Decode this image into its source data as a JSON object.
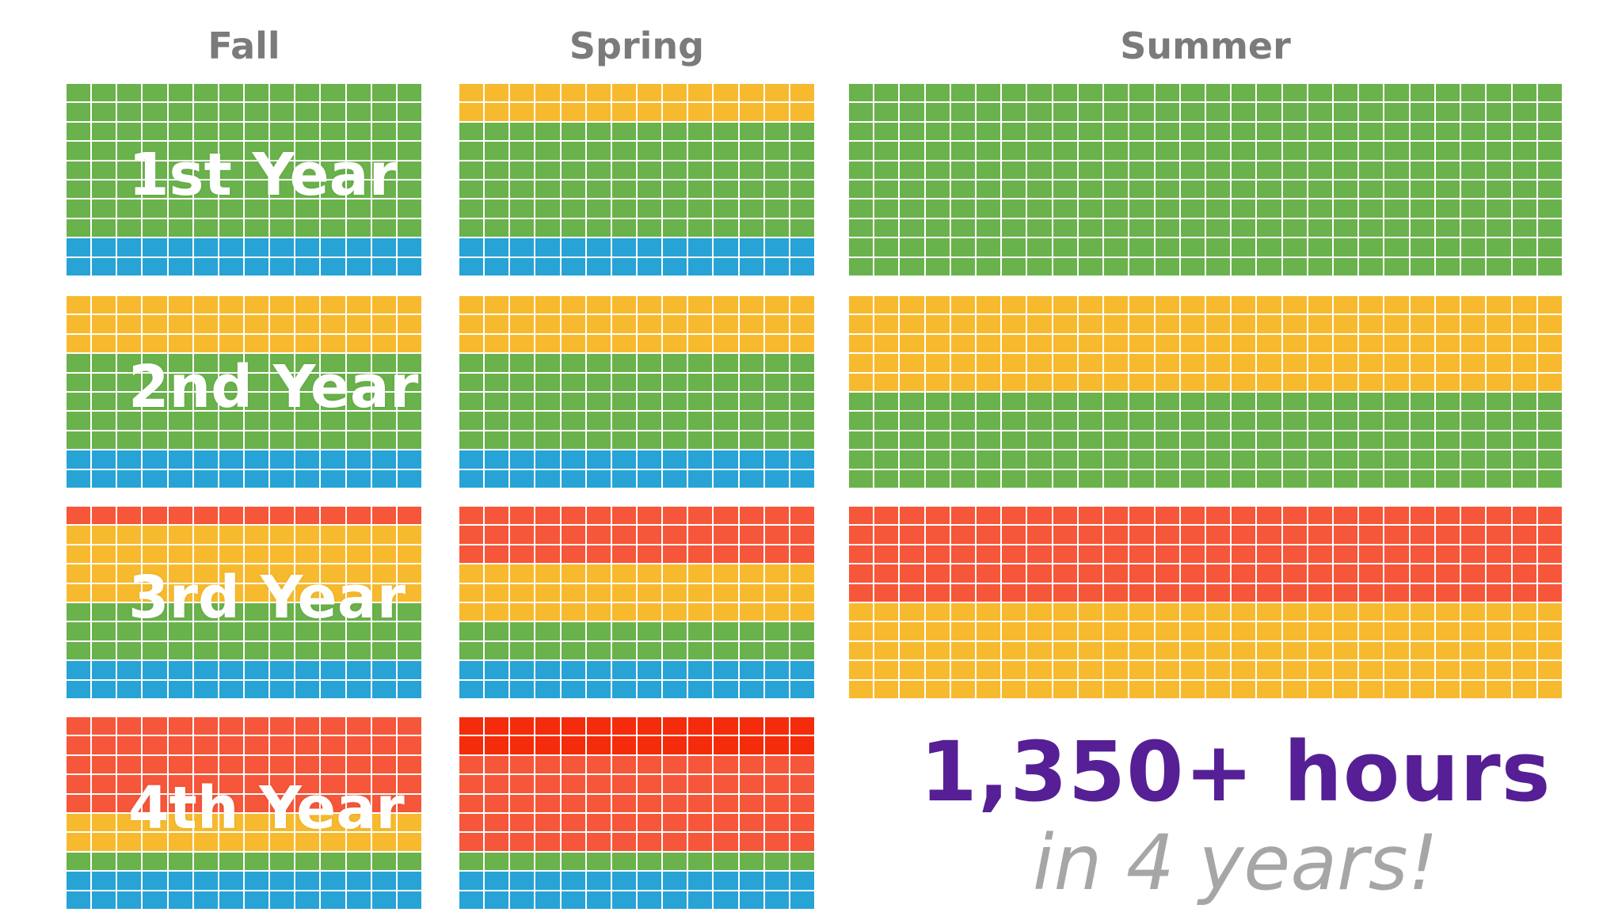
{
  "colors": {
    "green": "#6ab24c",
    "blue": "#27a3d6",
    "yellow": "#f7ba2e",
    "orange": "#f6563a",
    "red": "#f42c0b"
  },
  "headers": {
    "fall": "Fall",
    "spring": "Spring",
    "summer": "Summer"
  },
  "years": [
    {
      "label": "1st Year",
      "fall": [
        "green",
        "green",
        "green",
        "green",
        "green",
        "green",
        "green",
        "green",
        "blue",
        "blue"
      ],
      "spring": [
        "yellow",
        "yellow",
        "green",
        "green",
        "green",
        "green",
        "green",
        "green",
        "blue",
        "blue"
      ],
      "summer": [
        "green",
        "green",
        "green",
        "green",
        "green",
        "green",
        "green",
        "green",
        "green",
        "green"
      ]
    },
    {
      "label": "2nd Year",
      "fall": [
        "yellow",
        "yellow",
        "yellow",
        "green",
        "green",
        "green",
        "green",
        "green",
        "blue",
        "blue"
      ],
      "spring": [
        "yellow",
        "yellow",
        "yellow",
        "green",
        "green",
        "green",
        "green",
        "green",
        "blue",
        "blue"
      ],
      "summer": [
        "yellow",
        "yellow",
        "yellow",
        "yellow",
        "yellow",
        "green",
        "green",
        "green",
        "green",
        "green"
      ]
    },
    {
      "label": "3rd Year",
      "fall": [
        "orange",
        "yellow",
        "yellow",
        "yellow",
        "yellow",
        "green",
        "green",
        "green",
        "blue",
        "blue"
      ],
      "spring": [
        "orange",
        "orange",
        "orange",
        "yellow",
        "yellow",
        "yellow",
        "green",
        "green",
        "blue",
        "blue"
      ],
      "summer": [
        "orange",
        "orange",
        "orange",
        "orange",
        "orange",
        "yellow",
        "yellow",
        "yellow",
        "yellow",
        "yellow"
      ]
    },
    {
      "label": "4th Year",
      "fall": [
        "orange",
        "orange",
        "orange",
        "orange",
        "orange",
        "yellow",
        "yellow",
        "green",
        "blue",
        "blue"
      ],
      "spring": [
        "red",
        "red",
        "orange",
        "orange",
        "orange",
        "orange",
        "orange",
        "green",
        "blue",
        "blue"
      ],
      "summer": null
    }
  ],
  "summary": {
    "hours": "1,350+ hours",
    "period": "in 4 years!"
  }
}
